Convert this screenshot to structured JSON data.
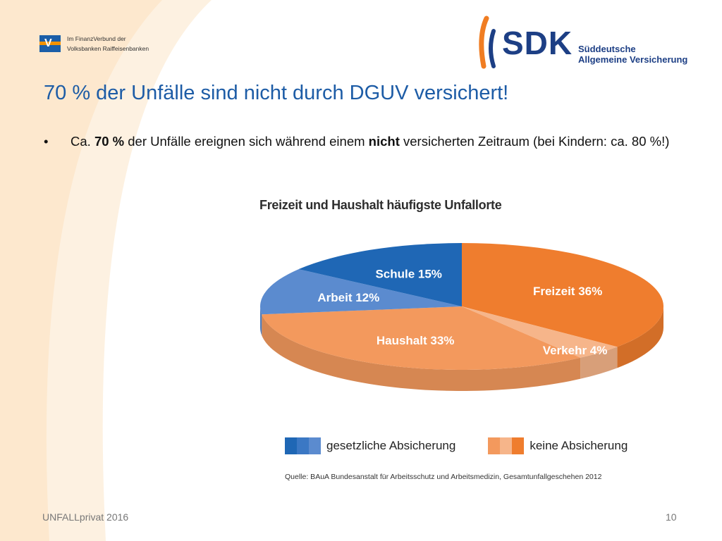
{
  "header": {
    "vr_logo_line1": "Im FinanzVerbund der",
    "vr_logo_line2": "Volksbanken Raiffeisenbanken",
    "sdk_name": "SDK",
    "sdk_line1": "Süddeutsche",
    "sdk_line2": "Allgemeine Versicherung"
  },
  "slide": {
    "title": "70 % der Unfälle sind nicht durch DGUV versichert!",
    "bullet_pre": "Ca. ",
    "bullet_bold1": "70 %",
    "bullet_mid": " der Unfälle ereignen sich während einem ",
    "bullet_bold2": "nicht",
    "bullet_post": " versicherten Zeitraum (bei Kindern: ca. 80 %!)",
    "footer_left": "UNFALLprivat 2016",
    "page_number": "10"
  },
  "chart_data": {
    "type": "pie",
    "title": "Freizeit und Haushalt häufigste Unfallorte",
    "slices": [
      {
        "label": "Freizeit 36%",
        "value": 36,
        "group": "keine Absicherung",
        "color": "#ef7d2e"
      },
      {
        "label": "Verkehr 4%",
        "value": 4,
        "group": "keine Absicherung",
        "color": "#f6b58a"
      },
      {
        "label": "Haushalt 33%",
        "value": 33,
        "group": "keine Absicherung",
        "color": "#f3995d"
      },
      {
        "label": "Arbeit 12%",
        "value": 12,
        "group": "gesetzliche Absicherung",
        "color": "#5b8bcf"
      },
      {
        "label": "Schule 15%",
        "value": 15,
        "group": "gesetzliche Absicherung",
        "color": "#1f67b5"
      }
    ],
    "legend": [
      {
        "label": "gesetzliche Absicherung",
        "colors": [
          "#1f67b5",
          "#3b78c4",
          "#5b8bcf"
        ]
      },
      {
        "label": "keine Absicherung",
        "colors": [
          "#f3995d",
          "#f6b58a",
          "#ef7d2e"
        ]
      }
    ],
    "source": "Quelle: BAuA Bundesanstalt für Arbeitsschutz und Arbeitsmedizin, Gesamtunfallgeschehen 2012"
  }
}
